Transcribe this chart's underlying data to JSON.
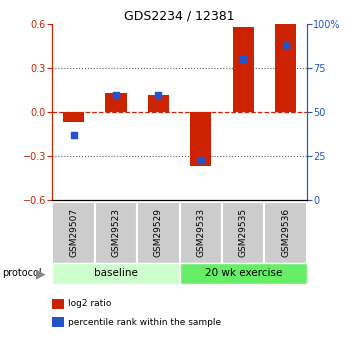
{
  "title": "GDS2234 / 12381",
  "samples": [
    "GSM29507",
    "GSM29523",
    "GSM29529",
    "GSM29533",
    "GSM29535",
    "GSM29536"
  ],
  "log2_ratios": [
    -0.07,
    0.13,
    0.12,
    -0.37,
    0.58,
    0.6
  ],
  "percentile_ranks": [
    37,
    60,
    60,
    23,
    80,
    88
  ],
  "ylim": [
    -0.6,
    0.6
  ],
  "yticks_left": [
    -0.6,
    -0.3,
    0.0,
    0.3,
    0.6
  ],
  "yticks_right": [
    0,
    25,
    50,
    75,
    100
  ],
  "bar_color": "#cc2200",
  "dot_color": "#2255cc",
  "hline_color": "#cc2200",
  "grid_color": "#555555",
  "baseline_color": "#ccffcc",
  "exercise_color": "#66ee66",
  "sample_box_color": "#cccccc",
  "protocol_groups": [
    {
      "label": "baseline",
      "start": 0,
      "end": 3,
      "color": "#ccffcc"
    },
    {
      "label": "20 wk exercise",
      "start": 3,
      "end": 6,
      "color": "#66ee66"
    }
  ],
  "legend_entries": [
    {
      "label": "log2 ratio",
      "color": "#cc2200"
    },
    {
      "label": "percentile rank within the sample",
      "color": "#2255cc"
    }
  ],
  "bar_width": 0.5,
  "dot_size": 18
}
